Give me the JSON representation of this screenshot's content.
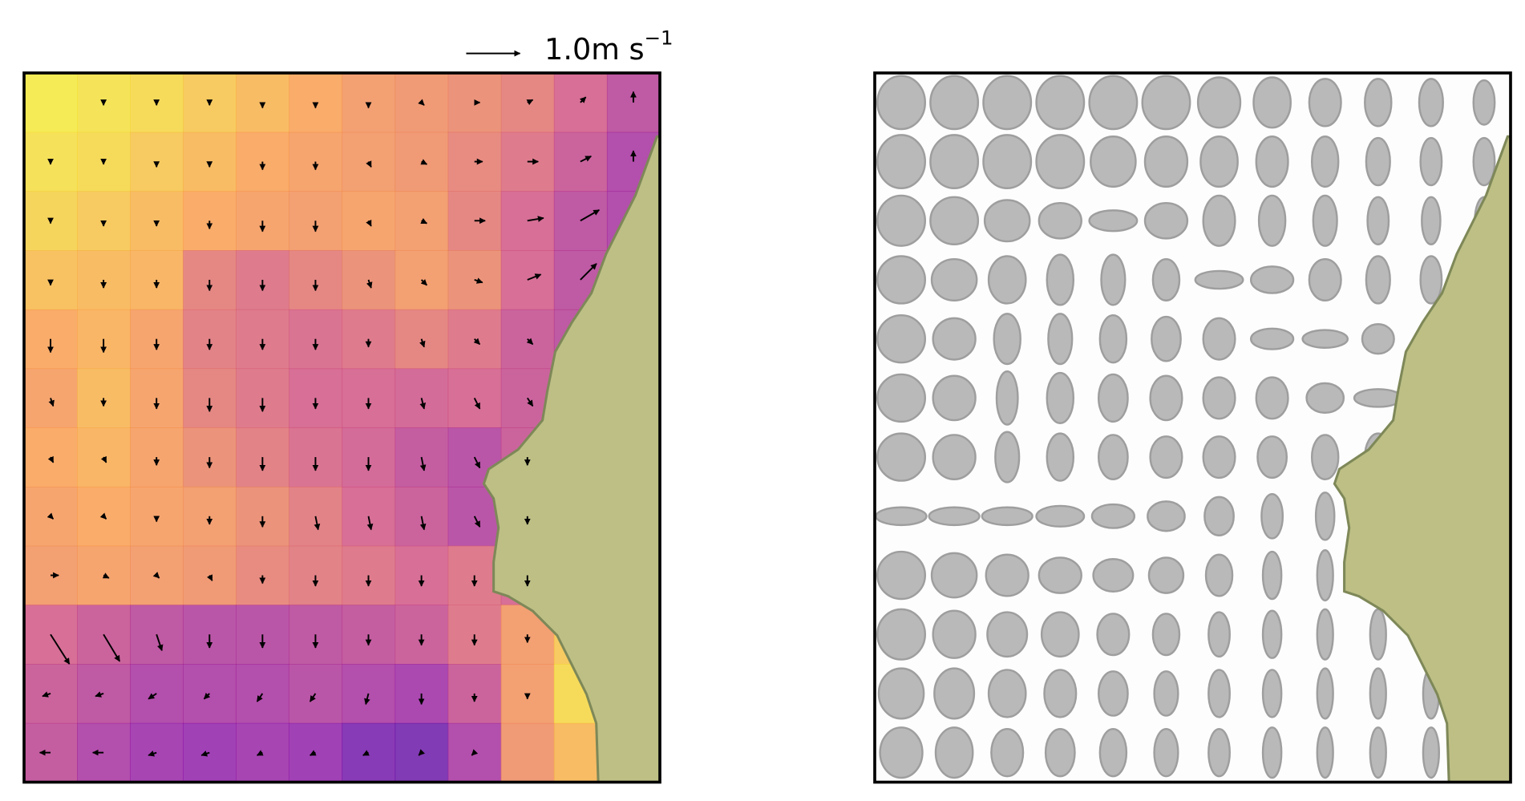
{
  "chart_data": [
    {
      "type": "heatmap-quiver",
      "colormap": "plasma",
      "quiver_key": {
        "value": 1,
        "label": "1.0",
        "unit": "m s",
        "exponent": "−1"
      },
      "values": [
        [
          0.95,
          0.93,
          0.9,
          0.85,
          0.8,
          0.75,
          0.7,
          0.68,
          0.65,
          0.6,
          0.5,
          0.4
        ],
        [
          0.92,
          0.9,
          0.85,
          0.8,
          0.75,
          0.72,
          0.7,
          0.68,
          0.62,
          0.55,
          0.45,
          0.35
        ],
        [
          0.88,
          0.85,
          0.8,
          0.75,
          0.72,
          0.7,
          0.72,
          0.7,
          0.6,
          0.5,
          0.4,
          0.35
        ],
        [
          0.82,
          0.8,
          0.78,
          0.6,
          0.55,
          0.6,
          0.65,
          0.7,
          0.65,
          0.5,
          0.4,
          0.35
        ],
        [
          0.75,
          0.78,
          0.72,
          0.58,
          0.55,
          0.52,
          0.55,
          0.6,
          0.55,
          0.45,
          0.4,
          0.35
        ],
        [
          0.72,
          0.8,
          0.72,
          0.6,
          0.55,
          0.5,
          0.5,
          0.48,
          0.5,
          0.45,
          0.4,
          0.35
        ],
        [
          0.75,
          0.78,
          0.72,
          0.65,
          0.58,
          0.52,
          0.48,
          0.42,
          0.38,
          0.45,
          0.4,
          0.35
        ],
        [
          0.72,
          0.75,
          0.72,
          0.7,
          0.65,
          0.58,
          0.5,
          0.45,
          0.38,
          0.45,
          0.4,
          0.35
        ],
        [
          0.7,
          0.72,
          0.7,
          0.68,
          0.62,
          0.58,
          0.55,
          0.5,
          0.55,
          0.5,
          0.7,
          0.75
        ],
        [
          0.5,
          0.45,
          0.4,
          0.38,
          0.38,
          0.4,
          0.42,
          0.45,
          0.55,
          0.7,
          0.85,
          0.8
        ],
        [
          0.45,
          0.4,
          0.35,
          0.35,
          0.35,
          0.38,
          0.35,
          0.32,
          0.45,
          0.7,
          0.9,
          0.8
        ],
        [
          0.42,
          0.35,
          0.3,
          0.28,
          0.3,
          0.28,
          0.2,
          0.18,
          0.35,
          0.68,
          0.8,
          0.8
        ]
      ],
      "u": [
        [
          0,
          0,
          0,
          0,
          0,
          0,
          0,
          0.05,
          0.1,
          0.1,
          0.1,
          0
        ],
        [
          0,
          0,
          0,
          0,
          0,
          0,
          0.05,
          0.1,
          0.15,
          0.2,
          0.2,
          0
        ],
        [
          0,
          0,
          0,
          0,
          0,
          0,
          0.05,
          0.1,
          0.2,
          0.3,
          0.35,
          0
        ],
        [
          0,
          0,
          0,
          0,
          0,
          0,
          0.05,
          0.1,
          0.15,
          0.25,
          0.3,
          0
        ],
        [
          0,
          0,
          0,
          0,
          0,
          0,
          0,
          0.05,
          0.1,
          0.1,
          0,
          0
        ],
        [
          0.05,
          0,
          0,
          0,
          0,
          0,
          0,
          0.05,
          0.1,
          0.1,
          0,
          0
        ],
        [
          0.05,
          0.05,
          0,
          0,
          0,
          0,
          0,
          0.05,
          0.1,
          0,
          0,
          0
        ],
        [
          0.05,
          0.05,
          0,
          0,
          0,
          0.05,
          0.05,
          0.05,
          0.1,
          0,
          0,
          0
        ],
        [
          0.15,
          0.1,
          0.05,
          0.05,
          0,
          0,
          0,
          0,
          0,
          0,
          0,
          0
        ],
        [
          0.35,
          0.3,
          0.1,
          0,
          0,
          0,
          0,
          0,
          0,
          0,
          0,
          0
        ],
        [
          -0.15,
          -0.15,
          -0.15,
          -0.1,
          -0.1,
          -0.1,
          -0.05,
          0,
          0,
          0,
          0,
          0
        ],
        [
          -0.2,
          -0.2,
          -0.15,
          -0.15,
          -0.1,
          -0.1,
          -0.1,
          -0.05,
          -0.05,
          0,
          0,
          0
        ]
      ],
      "v": [
        [
          0,
          -0.05,
          -0.05,
          -0.05,
          -0.1,
          -0.1,
          -0.1,
          -0.05,
          0,
          0.05,
          0.1,
          0.2
        ],
        [
          -0.05,
          -0.05,
          -0.1,
          -0.1,
          -0.15,
          -0.15,
          -0.1,
          -0.05,
          0,
          0,
          0.1,
          0.2
        ],
        [
          -0.05,
          -0.1,
          -0.1,
          -0.15,
          -0.2,
          -0.2,
          -0.1,
          -0.05,
          0,
          0.05,
          0.2,
          0
        ],
        [
          -0.1,
          -0.15,
          -0.15,
          -0.2,
          -0.2,
          -0.2,
          -0.15,
          -0.1,
          -0.05,
          0.1,
          0.3,
          0
        ],
        [
          -0.25,
          -0.25,
          -0.2,
          -0.2,
          -0.2,
          -0.2,
          -0.15,
          -0.15,
          -0.1,
          -0.1,
          0,
          0
        ],
        [
          -0.15,
          -0.15,
          -0.2,
          -0.25,
          -0.25,
          -0.2,
          -0.2,
          -0.2,
          -0.2,
          -0.15,
          0,
          0
        ],
        [
          -0.1,
          -0.1,
          -0.15,
          -0.2,
          -0.25,
          -0.25,
          -0.25,
          -0.25,
          -0.2,
          -0.15,
          0,
          0
        ],
        [
          -0.05,
          -0.05,
          -0.1,
          -0.15,
          -0.2,
          -0.25,
          -0.25,
          -0.25,
          -0.2,
          -0.15,
          0,
          0
        ],
        [
          0,
          -0.05,
          -0.05,
          -0.1,
          -0.15,
          -0.2,
          -0.2,
          -0.2,
          -0.2,
          -0.2,
          0,
          0
        ],
        [
          -0.55,
          -0.5,
          -0.3,
          -0.25,
          -0.25,
          -0.25,
          -0.2,
          -0.2,
          -0.2,
          -0.15,
          0,
          0
        ],
        [
          -0.05,
          -0.05,
          -0.1,
          -0.1,
          -0.15,
          -0.15,
          -0.2,
          -0.2,
          -0.15,
          -0.1,
          0,
          0
        ],
        [
          0,
          0,
          -0.05,
          -0.05,
          -0.05,
          -0.05,
          -0.05,
          -0.05,
          -0.05,
          0,
          0,
          0
        ]
      ]
    },
    {
      "type": "ellipses",
      "color": "#b9b9b9",
      "width": [
        [
          0.9,
          0.9,
          0.9,
          0.9,
          0.9,
          0.9,
          0.8,
          0.7,
          0.6,
          0.5,
          0.45,
          0.4
        ],
        [
          0.9,
          0.9,
          0.9,
          0.9,
          0.85,
          0.8,
          0.7,
          0.6,
          0.5,
          0.45,
          0.4,
          0.4
        ],
        [
          0.9,
          0.9,
          0.85,
          0.8,
          0.9,
          0.8,
          0.6,
          0.5,
          0.45,
          0.4,
          0.35,
          0.35
        ],
        [
          0.9,
          0.85,
          0.7,
          0.5,
          0.45,
          0.5,
          0.9,
          0.8,
          0.6,
          0.45,
          0.4,
          0.35
        ],
        [
          0.9,
          0.8,
          0.5,
          0.45,
          0.5,
          0.55,
          0.6,
          0.8,
          0.85,
          0.6,
          0.4,
          0.35
        ],
        [
          0.9,
          0.8,
          0.4,
          0.5,
          0.55,
          0.6,
          0.6,
          0.6,
          0.7,
          0.9,
          0.4,
          0.35
        ],
        [
          0.9,
          0.8,
          0.45,
          0.5,
          0.55,
          0.6,
          0.6,
          0.55,
          0.5,
          0.5,
          0.4,
          0.35
        ],
        [
          0.95,
          0.95,
          0.95,
          0.9,
          0.8,
          0.7,
          0.55,
          0.4,
          0.35,
          0.3,
          0.3,
          0.3
        ],
        [
          0.9,
          0.85,
          0.8,
          0.8,
          0.75,
          0.65,
          0.5,
          0.35,
          0.3,
          0.3,
          0.3,
          0.3
        ],
        [
          0.9,
          0.8,
          0.75,
          0.7,
          0.6,
          0.5,
          0.4,
          0.35,
          0.3,
          0.3,
          0.3,
          0.3
        ],
        [
          0.85,
          0.75,
          0.7,
          0.6,
          0.55,
          0.45,
          0.4,
          0.35,
          0.3,
          0.3,
          0.3,
          0.3
        ],
        [
          0.8,
          0.7,
          0.6,
          0.55,
          0.5,
          0.45,
          0.4,
          0.35,
          0.3,
          0.3,
          0.3,
          0.3
        ]
      ],
      "height": [
        [
          0.9,
          0.9,
          0.9,
          0.9,
          0.9,
          0.9,
          0.85,
          0.85,
          0.8,
          0.8,
          0.8,
          0.75
        ],
        [
          0.9,
          0.9,
          0.9,
          0.9,
          0.85,
          0.85,
          0.85,
          0.85,
          0.85,
          0.8,
          0.8,
          0.8
        ],
        [
          0.85,
          0.8,
          0.7,
          0.6,
          0.35,
          0.6,
          0.85,
          0.85,
          0.85,
          0.8,
          0.8,
          0.8
        ],
        [
          0.8,
          0.7,
          0.8,
          0.85,
          0.85,
          0.7,
          0.3,
          0.45,
          0.7,
          0.8,
          0.8,
          0.8
        ],
        [
          0.8,
          0.7,
          0.85,
          0.85,
          0.8,
          0.75,
          0.7,
          0.35,
          0.3,
          0.5,
          0.8,
          0.8
        ],
        [
          0.8,
          0.75,
          0.9,
          0.85,
          0.8,
          0.75,
          0.7,
          0.7,
          0.5,
          0.3,
          0.8,
          0.8
        ],
        [
          0.8,
          0.75,
          0.85,
          0.8,
          0.75,
          0.7,
          0.7,
          0.7,
          0.75,
          0.8,
          0.8,
          0.8
        ],
        [
          0.3,
          0.3,
          0.3,
          0.35,
          0.4,
          0.5,
          0.65,
          0.75,
          0.8,
          0.85,
          0.85,
          0.85
        ],
        [
          0.8,
          0.75,
          0.7,
          0.6,
          0.55,
          0.6,
          0.7,
          0.8,
          0.85,
          0.85,
          0.85,
          0.85
        ],
        [
          0.85,
          0.8,
          0.75,
          0.75,
          0.7,
          0.7,
          0.75,
          0.8,
          0.85,
          0.85,
          0.85,
          0.85
        ],
        [
          0.85,
          0.85,
          0.8,
          0.8,
          0.75,
          0.75,
          0.8,
          0.8,
          0.85,
          0.85,
          0.85,
          0.85
        ],
        [
          0.85,
          0.85,
          0.8,
          0.8,
          0.8,
          0.8,
          0.8,
          0.85,
          0.85,
          0.85,
          0.85,
          0.85
        ]
      ]
    }
  ]
}
